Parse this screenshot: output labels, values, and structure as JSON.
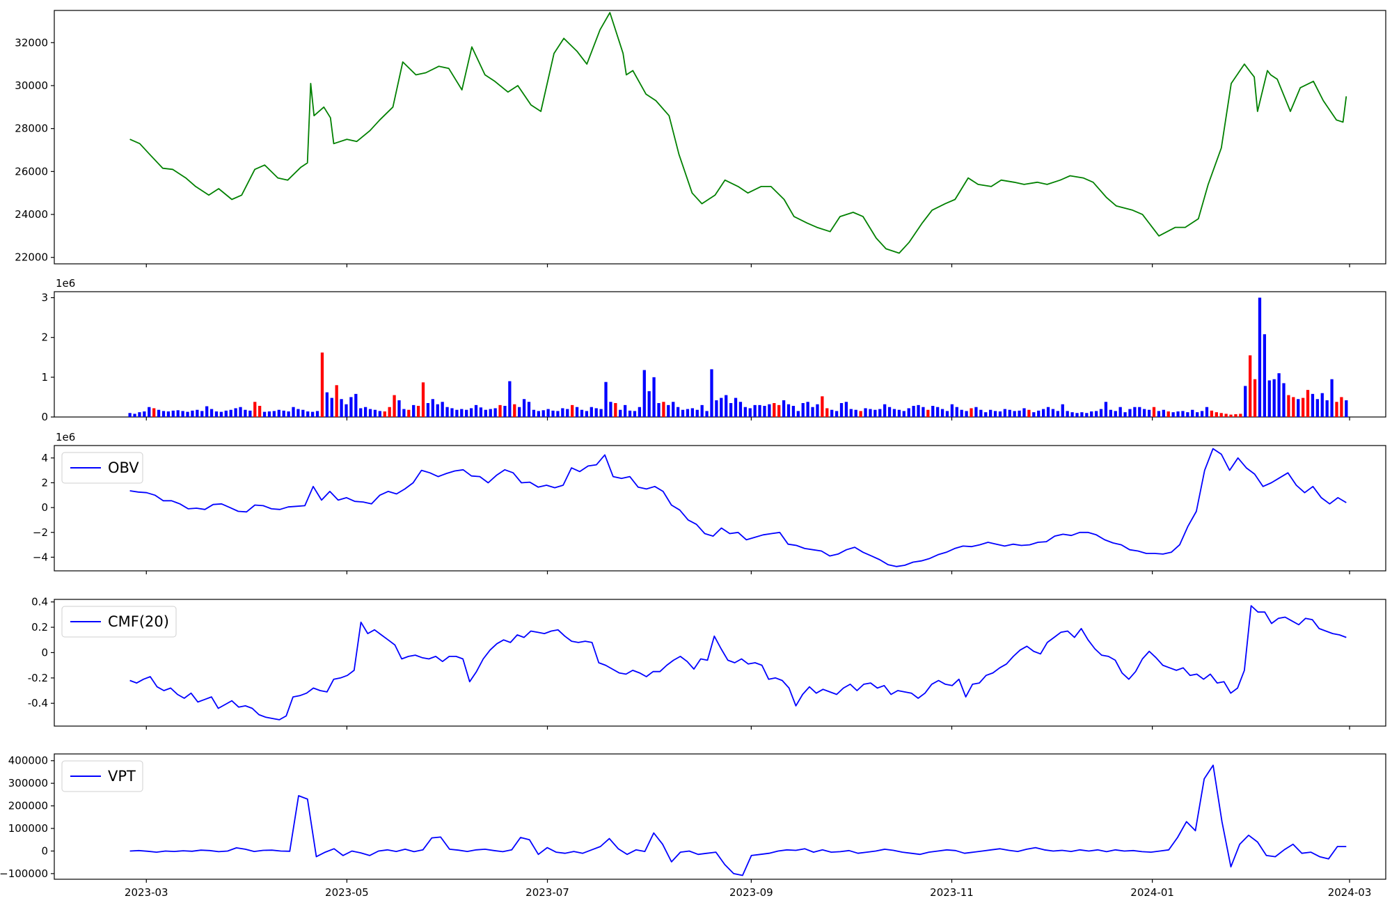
{
  "colors": {
    "price": "#008000",
    "indicator": "#0000ff",
    "vol_up": "#ff0000",
    "vol_down": "#0000ff",
    "vol_flat": "#000000"
  },
  "chart_data": [
    {
      "type": "line",
      "name": "price",
      "color": "#008000",
      "ylim": [
        21700,
        33500
      ],
      "yticks": [
        22000,
        24000,
        26000,
        28000,
        30000,
        32000
      ],
      "x": [
        "2023-02-24",
        "2023-02-27",
        "2023-03-02",
        "2023-03-06",
        "2023-03-09",
        "2023-03-13",
        "2023-03-16",
        "2023-03-20",
        "2023-03-23",
        "2023-03-27",
        "2023-03-30",
        "2023-04-03",
        "2023-04-06",
        "2023-04-10",
        "2023-04-13",
        "2023-04-17",
        "2023-04-19",
        "2023-04-20",
        "2023-04-21",
        "2023-04-24",
        "2023-04-26",
        "2023-04-27",
        "2023-05-01",
        "2023-05-04",
        "2023-05-08",
        "2023-05-11",
        "2023-05-15",
        "2023-05-18",
        "2023-05-22",
        "2023-05-25",
        "2023-05-29",
        "2023-06-01",
        "2023-06-05",
        "2023-06-08",
        "2023-06-12",
        "2023-06-15",
        "2023-06-19",
        "2023-06-22",
        "2023-06-26",
        "2023-06-29",
        "2023-07-03",
        "2023-07-06",
        "2023-07-10",
        "2023-07-13",
        "2023-07-17",
        "2023-07-20",
        "2023-07-24",
        "2023-07-25",
        "2023-07-27",
        "2023-07-31",
        "2023-08-03",
        "2023-08-07",
        "2023-08-10",
        "2023-08-14",
        "2023-08-17",
        "2023-08-21",
        "2023-08-24",
        "2023-08-28",
        "2023-08-31",
        "2023-09-04",
        "2023-09-07",
        "2023-09-11",
        "2023-09-14",
        "2023-09-18",
        "2023-09-21",
        "2023-09-25",
        "2023-09-28",
        "2023-10-02",
        "2023-10-05",
        "2023-10-09",
        "2023-10-12",
        "2023-10-16",
        "2023-10-19",
        "2023-10-23",
        "2023-10-26",
        "2023-10-30",
        "2023-11-02",
        "2023-11-06",
        "2023-11-09",
        "2023-11-13",
        "2023-11-16",
        "2023-11-20",
        "2023-11-23",
        "2023-11-27",
        "2023-11-30",
        "2023-12-04",
        "2023-12-07",
        "2023-12-11",
        "2023-12-14",
        "2023-12-18",
        "2023-12-21",
        "2023-12-26",
        "2023-12-29",
        "2024-01-03",
        "2024-01-08",
        "2024-01-11",
        "2024-01-15",
        "2024-01-18",
        "2024-01-22",
        "2024-01-25",
        "2024-01-29",
        "2024-01-31",
        "2024-02-01",
        "2024-02-02",
        "2024-02-05",
        "2024-02-06",
        "2024-02-08",
        "2024-02-12",
        "2024-02-15",
        "2024-02-19",
        "2024-02-22",
        "2024-02-26",
        "2024-02-28",
        "2024-02-29"
      ],
      "y": [
        27500,
        27300,
        26800,
        26150,
        26100,
        25700,
        25300,
        24900,
        25200,
        24700,
        24900,
        26100,
        26300,
        25700,
        25600,
        26200,
        26400,
        30100,
        28600,
        29000,
        28500,
        27300,
        27500,
        27400,
        27900,
        28400,
        29000,
        31100,
        30500,
        30600,
        30900,
        30800,
        29800,
        31800,
        30500,
        30200,
        29700,
        30000,
        29100,
        28800,
        31500,
        32200,
        31600,
        31000,
        32600,
        33400,
        31500,
        30500,
        30700,
        29600,
        29300,
        28600,
        26800,
        25000,
        24500,
        24900,
        25600,
        25300,
        25000,
        25300,
        25300,
        24700,
        23900,
        23600,
        23400,
        23200,
        23900,
        24100,
        23900,
        22900,
        22400,
        22200,
        22700,
        23600,
        24200,
        24500,
        24700,
        25700,
        25400,
        25300,
        25600,
        25500,
        25400,
        25500,
        25400,
        25600,
        25800,
        25700,
        25500,
        24800,
        24400,
        24200,
        24000,
        23000,
        23400,
        23400,
        23800,
        25400,
        27100,
        30100,
        31000,
        30600,
        30400,
        28800,
        30700,
        30500,
        30300,
        28800,
        29900,
        30200,
        29300,
        28400,
        28300,
        29500
      ]
    },
    {
      "type": "bar",
      "name": "volume",
      "offset_label": "1e6",
      "ylim": [
        0,
        3.15
      ],
      "yticks": [
        0,
        1,
        2,
        3
      ],
      "values": [
        0.1,
        0.08,
        0.12,
        0.14,
        0.25,
        0.22,
        0.18,
        0.15,
        0.14,
        0.16,
        0.17,
        0.15,
        0.13,
        0.16,
        0.18,
        0.15,
        0.27,
        0.2,
        0.14,
        0.13,
        0.16,
        0.18,
        0.22,
        0.25,
        0.18,
        0.16,
        0.38,
        0.28,
        0.13,
        0.14,
        0.15,
        0.18,
        0.16,
        0.14,
        0.25,
        0.2,
        0.18,
        0.14,
        0.13,
        0.15,
        1.62,
        0.62,
        0.48,
        0.8,
        0.45,
        0.32,
        0.5,
        0.58,
        0.22,
        0.25,
        0.2,
        0.18,
        0.15,
        0.14,
        0.25,
        0.55,
        0.42,
        0.2,
        0.18,
        0.3,
        0.28,
        0.87,
        0.35,
        0.45,
        0.32,
        0.38,
        0.25,
        0.22,
        0.18,
        0.2,
        0.18,
        0.22,
        0.3,
        0.24,
        0.18,
        0.2,
        0.22,
        0.3,
        0.28,
        0.9,
        0.32,
        0.25,
        0.45,
        0.38,
        0.18,
        0.15,
        0.17,
        0.2,
        0.16,
        0.15,
        0.22,
        0.2,
        0.3,
        0.25,
        0.18,
        0.15,
        0.25,
        0.22,
        0.2,
        0.88,
        0.38,
        0.35,
        0.18,
        0.3,
        0.16,
        0.15,
        0.25,
        1.18,
        0.65,
        1.0,
        0.35,
        0.38,
        0.3,
        0.38,
        0.25,
        0.18,
        0.2,
        0.22,
        0.18,
        0.3,
        0.15,
        1.2,
        0.42,
        0.48,
        0.55,
        0.35,
        0.48,
        0.38,
        0.25,
        0.22,
        0.3,
        0.3,
        0.28,
        0.32,
        0.35,
        0.3,
        0.42,
        0.32,
        0.28,
        0.15,
        0.35,
        0.38,
        0.25,
        0.32,
        0.52,
        0.22,
        0.18,
        0.15,
        0.35,
        0.38,
        0.2,
        0.18,
        0.15,
        0.22,
        0.2,
        0.18,
        0.2,
        0.32,
        0.25,
        0.2,
        0.18,
        0.15,
        0.22,
        0.28,
        0.3,
        0.25,
        0.18,
        0.28,
        0.25,
        0.2,
        0.15,
        0.32,
        0.25,
        0.18,
        0.15,
        0.22,
        0.25,
        0.18,
        0.12,
        0.18,
        0.15,
        0.14,
        0.2,
        0.18,
        0.15,
        0.16,
        0.22,
        0.18,
        0.12,
        0.16,
        0.2,
        0.25,
        0.2,
        0.15,
        0.32,
        0.15,
        0.12,
        0.1,
        0.12,
        0.1,
        0.14,
        0.15,
        0.2,
        0.38,
        0.18,
        0.15,
        0.25,
        0.12,
        0.2,
        0.25,
        0.25,
        0.2,
        0.18,
        0.25,
        0.15,
        0.18,
        0.14,
        0.12,
        0.14,
        0.15,
        0.12,
        0.18,
        0.12,
        0.15,
        0.25,
        0.16,
        0.12,
        0.1,
        0.08,
        0.06,
        0.07,
        0.08,
        0.78,
        1.55,
        0.95,
        3.0,
        2.08,
        0.92,
        0.95,
        1.1,
        0.85,
        0.55,
        0.5,
        0.45,
        0.48,
        0.68,
        0.58,
        0.45,
        0.6,
        0.42,
        0.95,
        0.38,
        0.5,
        0.42
      ],
      "colors": "bbbbbrbbbbbbbbbbbbbbbbbbbbrrbbbbbbbbbbbbrbbrbbbbbbbbbrrrbbrbrrbbbbbbbbbbbbbbbrbbrbbbbbbbbbbbrbbbbbbbbrbbbbbbbbbrbbbbbbbbbbbbbbbbbbbbbbrrbbbbbbbbrrbbbbbbrbbbbbbbbbbbbbrbbbbbbbbrbbbbbbbbbbbrbbbbbbbbbbbbbbbbbbbbbbbbbrbbrbbbbbbbbrrrrrrrbrrbbbbbbrrbrrbbbbbrr"
    },
    {
      "type": "line",
      "name": "OBV",
      "legend": "OBV",
      "offset_label": "1e6",
      "color": "#0000ff",
      "ylim": [
        -5.1,
        5.0
      ],
      "yticks": [
        -4,
        -2,
        0,
        2,
        4
      ],
      "y": [
        1.35,
        1.25,
        1.2,
        1.0,
        0.55,
        0.55,
        0.3,
        -0.1,
        -0.05,
        -0.15,
        0.25,
        0.3,
        0.0,
        -0.3,
        -0.35,
        0.2,
        0.15,
        -0.1,
        -0.15,
        0.05,
        0.1,
        0.15,
        1.7,
        0.6,
        1.3,
        0.6,
        0.8,
        0.5,
        0.45,
        0.3,
        1.0,
        1.3,
        1.1,
        1.5,
        2.0,
        3.0,
        2.8,
        2.5,
        2.75,
        2.95,
        3.05,
        2.55,
        2.5,
        2.0,
        2.6,
        3.05,
        2.8,
        2.0,
        2.05,
        1.65,
        1.8,
        1.6,
        1.8,
        3.2,
        2.9,
        3.35,
        3.45,
        4.25,
        2.5,
        2.35,
        2.5,
        1.65,
        1.5,
        1.7,
        1.3,
        0.2,
        -0.2,
        -1.0,
        -1.35,
        -2.1,
        -2.3,
        -1.65,
        -2.1,
        -2.0,
        -2.6,
        -2.4,
        -2.2,
        -2.1,
        -2.0,
        -2.95,
        -3.05,
        -3.3,
        -3.4,
        -3.5,
        -3.9,
        -3.75,
        -3.4,
        -3.2,
        -3.6,
        -3.9,
        -4.2,
        -4.6,
        -4.75,
        -4.65,
        -4.4,
        -4.3,
        -4.1,
        -3.8,
        -3.6,
        -3.3,
        -3.1,
        -3.15,
        -3.0,
        -2.8,
        -2.95,
        -3.1,
        -2.95,
        -3.05,
        -3.0,
        -2.8,
        -2.75,
        -2.3,
        -2.15,
        -2.25,
        -2.0,
        -2.0,
        -2.2,
        -2.6,
        -2.85,
        -3.0,
        -3.4,
        -3.5,
        -3.7,
        -3.7,
        -3.75,
        -3.6,
        -3.0,
        -1.5,
        -0.3,
        3.0,
        4.75,
        4.3,
        3.0,
        4.0,
        3.2,
        2.7,
        1.7,
        2.0,
        2.4,
        2.8,
        1.8,
        1.2,
        1.7,
        0.8,
        0.3,
        0.8,
        0.4
      ]
    },
    {
      "type": "line",
      "name": "CMF(20)",
      "legend": "CMF(20)",
      "color": "#0000ff",
      "ylim": [
        -0.58,
        0.42
      ],
      "yticks": [
        -0.4,
        -0.2,
        0.0,
        0.2,
        0.4
      ],
      "y": [
        -0.22,
        -0.24,
        -0.21,
        -0.19,
        -0.27,
        -0.3,
        -0.28,
        -0.33,
        -0.36,
        -0.32,
        -0.39,
        -0.37,
        -0.35,
        -0.44,
        -0.41,
        -0.38,
        -0.43,
        -0.42,
        -0.44,
        -0.49,
        -0.51,
        -0.52,
        -0.53,
        -0.5,
        -0.35,
        -0.34,
        -0.32,
        -0.28,
        -0.3,
        -0.31,
        -0.21,
        -0.2,
        -0.18,
        -0.14,
        0.24,
        0.15,
        0.18,
        0.14,
        0.1,
        0.06,
        -0.05,
        -0.03,
        -0.02,
        -0.04,
        -0.05,
        -0.03,
        -0.07,
        -0.03,
        -0.03,
        -0.05,
        -0.23,
        -0.15,
        -0.05,
        0.02,
        0.07,
        0.1,
        0.08,
        0.14,
        0.12,
        0.17,
        0.16,
        0.15,
        0.17,
        0.18,
        0.13,
        0.09,
        0.08,
        0.09,
        0.08,
        -0.08,
        -0.1,
        -0.13,
        -0.16,
        -0.17,
        -0.14,
        -0.16,
        -0.19,
        -0.15,
        -0.15,
        -0.1,
        -0.06,
        -0.03,
        -0.07,
        -0.13,
        -0.05,
        -0.06,
        0.13,
        0.03,
        -0.06,
        -0.08,
        -0.05,
        -0.09,
        -0.08,
        -0.1,
        -0.21,
        -0.2,
        -0.22,
        -0.28,
        -0.42,
        -0.33,
        -0.27,
        -0.32,
        -0.29,
        -0.31,
        -0.33,
        -0.28,
        -0.25,
        -0.3,
        -0.25,
        -0.24,
        -0.28,
        -0.26,
        -0.33,
        -0.3,
        -0.31,
        -0.32,
        -0.36,
        -0.32,
        -0.25,
        -0.22,
        -0.25,
        -0.26,
        -0.21,
        -0.35,
        -0.25,
        -0.24,
        -0.18,
        -0.16,
        -0.12,
        -0.09,
        -0.03,
        0.02,
        0.05,
        0.01,
        -0.01,
        0.08,
        0.12,
        0.16,
        0.17,
        0.12,
        0.19,
        0.1,
        0.03,
        -0.02,
        -0.03,
        -0.06,
        -0.16,
        -0.21,
        -0.15,
        -0.05,
        0.01,
        -0.04,
        -0.1,
        -0.12,
        -0.14,
        -0.12,
        -0.18,
        -0.17,
        -0.21,
        -0.17,
        -0.24,
        -0.23,
        -0.32,
        -0.28,
        -0.14,
        0.37,
        0.32,
        0.32,
        0.23,
        0.27,
        0.28,
        0.25,
        0.22,
        0.27,
        0.26,
        0.19,
        0.17,
        0.15,
        0.14,
        0.12
      ]
    },
    {
      "type": "line",
      "name": "VPT",
      "legend": "VPT",
      "color": "#0000ff",
      "ylim": [
        -125000,
        430000
      ],
      "yticks": [
        -100000,
        0,
        100000,
        200000,
        300000,
        400000
      ],
      "y": [
        0,
        2000,
        -1000,
        -5000,
        0,
        -2000,
        1000,
        -1000,
        4000,
        2000,
        -3000,
        0,
        14000,
        8000,
        -2000,
        3000,
        4000,
        0,
        -1000,
        245000,
        230000,
        -25000,
        -5000,
        10000,
        -20000,
        0,
        -8000,
        -20000,
        0,
        5000,
        -2000,
        8000,
        -3000,
        5000,
        58000,
        62000,
        8000,
        4000,
        -2000,
        5000,
        8000,
        2000,
        -3000,
        5000,
        60000,
        50000,
        -15000,
        15000,
        -5000,
        -10000,
        -2000,
        -10000,
        5000,
        20000,
        55000,
        10000,
        -15000,
        5000,
        -2000,
        80000,
        30000,
        -48000,
        -5000,
        0,
        -15000,
        -10000,
        -5000,
        -60000,
        -100000,
        -108000,
        -20000,
        -15000,
        -10000,
        0,
        5000,
        3000,
        10000,
        -5000,
        5000,
        -5000,
        -3000,
        2000,
        -10000,
        -5000,
        0,
        8000,
        3000,
        -5000,
        -10000,
        -15000,
        -5000,
        0,
        5000,
        2000,
        -10000,
        -5000,
        0,
        5000,
        10000,
        3000,
        -2000,
        8000,
        15000,
        5000,
        0,
        3000,
        -2000,
        5000,
        0,
        5000,
        -3000,
        5000,
        0,
        2000,
        -3000,
        -5000,
        0,
        5000,
        60000,
        130000,
        90000,
        320000,
        380000,
        130000,
        -70000,
        30000,
        70000,
        40000,
        -20000,
        -25000,
        5000,
        30000,
        -10000,
        -5000,
        -25000,
        -35000,
        20000,
        20000
      ]
    }
  ],
  "x_axis": {
    "domain": [
      "2023-02-01",
      "2024-03-12"
    ],
    "ticks": [
      {
        "date": "2023-03-01",
        "label": "2023-03"
      },
      {
        "date": "2023-05-01",
        "label": "2023-05"
      },
      {
        "date": "2023-07-01",
        "label": "2023-07"
      },
      {
        "date": "2023-09-01",
        "label": "2023-09"
      },
      {
        "date": "2023-11-01",
        "label": "2023-11"
      },
      {
        "date": "2024-01-01",
        "label": "2024-01"
      },
      {
        "date": "2024-03-01",
        "label": "2024-03"
      }
    ],
    "series_start": "2023-02-24",
    "series_end": "2024-02-29"
  }
}
